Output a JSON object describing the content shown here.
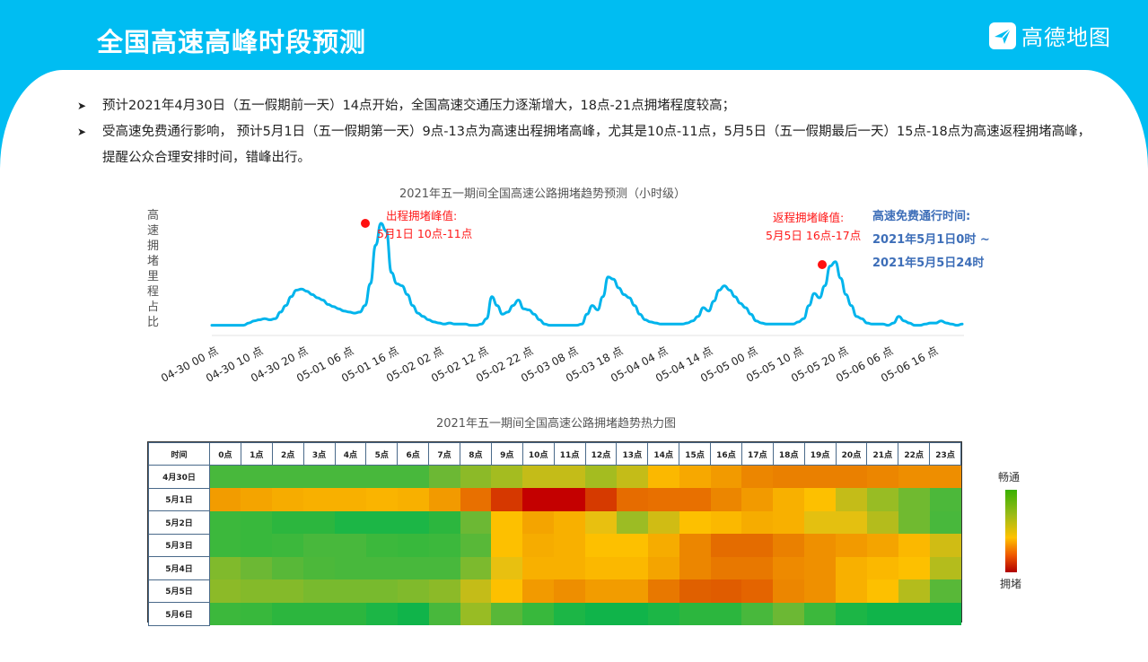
{
  "header": {
    "title": "全国高速高峰时段预测",
    "brand": "高德地图",
    "brand_icon": "amap-logo-icon",
    "bg_color": "#00bdf2"
  },
  "bullets": [
    {
      "icon": "arrow-bullet-icon",
      "text": "预计2021年4月30日（五一假期前一天）14点开始，全国高速交通压力逐渐增大，18点-21点拥堵程度较高；"
    },
    {
      "icon": "arrow-bullet-icon",
      "text": "受高速免费通行影响， 预计5月1日（五一假期第一天）9点-13点为高速出程拥堵高峰，尤其是10点-11点，5月5日（五一假期最后一天）15点-18点为高速返程拥堵高峰，提醒公众合理安排时间，错峰出行。"
    }
  ],
  "line_chart": {
    "title": "2021年五一期间全国高速公路拥堵趋势预测（小时级）",
    "ylabel": "高速拥堵里程占比",
    "line_color": "#00b4ec",
    "peak_out": {
      "label1": "出程拥堵峰值:",
      "label2": "5月1日  10点-11点"
    },
    "peak_return": {
      "label1": "返程拥堵峰值:",
      "label2": "5月5日 16点-17点"
    },
    "free_period": {
      "line1": "高速免费通行时间:",
      "line2": "2021年5月1日0时 ~",
      "line3": "2021年5月5日24时"
    },
    "xticks": [
      "04-30 00 点",
      "04-30 10 点",
      "04-30 20 点",
      "05-01 06 点",
      "05-01 16 点",
      "05-02 02 点",
      "05-02 12 点",
      "05-02 22 点",
      "05-03 08 点",
      "05-03 18 点",
      "05-04 04 点",
      "05-04 14 点",
      "05-05 00 点",
      "05-05 10 点",
      "05-05 20 点",
      "05-06 06 点",
      "05-06 16 点"
    ]
  },
  "heatmap": {
    "title": "2021年五一期间全国高速公路拥堵趋势热力图",
    "corner": "时间",
    "hours": [
      "0点",
      "1点",
      "2点",
      "3点",
      "4点",
      "5点",
      "6点",
      "7点",
      "8点",
      "9点",
      "10点",
      "11点",
      "12点",
      "13点",
      "14点",
      "15点",
      "16点",
      "17点",
      "18点",
      "19点",
      "20点",
      "21点",
      "22点",
      "23点"
    ],
    "rows": [
      {
        "date": "4月30日",
        "colors": [
          "#48b83c",
          "#48b83c",
          "#48b83c",
          "#48b83c",
          "#48b83c",
          "#48b83c",
          "#48b83c",
          "#6cb834",
          "#8cba28",
          "#a4bc20",
          "#c4bc18",
          "#c4bc18",
          "#a4bc20",
          "#c4bc18",
          "#fbb800",
          "#f7a800",
          "#f29a00",
          "#ec8600",
          "#ea8000",
          "#ea8000",
          "#ea8000",
          "#ec8600",
          "#ee8e00",
          "#ee8e00"
        ]
      },
      {
        "date": "5月1日",
        "colors": [
          "#f29c00",
          "#f4a400",
          "#f6ac00",
          "#f8b000",
          "#f8b000",
          "#fab400",
          "#f8b000",
          "#f29a00",
          "#e87000",
          "#d63800",
          "#c40000",
          "#c40000",
          "#d63a00",
          "#e66c00",
          "#e87000",
          "#e87000",
          "#ec8600",
          "#f29a00",
          "#f8b000",
          "#fdc000",
          "#c4bc18",
          "#98bc24",
          "#70ba30",
          "#4cb83a"
        ]
      },
      {
        "date": "5月2日",
        "colors": [
          "#3cb83c",
          "#38b83c",
          "#2cb63e",
          "#2cb63e",
          "#1cb646",
          "#1cb646",
          "#1cb646",
          "#2cb63e",
          "#6cb834",
          "#fdc000",
          "#f4a400",
          "#f8b000",
          "#e8c010",
          "#9cbc24",
          "#d0bc14",
          "#fdc000",
          "#fbb800",
          "#f6ac00",
          "#f8b000",
          "#e4c010",
          "#e4c010",
          "#b4bc1c",
          "#70ba30",
          "#48b83c"
        ]
      },
      {
        "date": "5月3日",
        "colors": [
          "#3cb83c",
          "#38b83c",
          "#3cb83c",
          "#48b83c",
          "#48b83c",
          "#3cb83c",
          "#38b83c",
          "#3cb83c",
          "#58b838",
          "#fdc000",
          "#f6ac00",
          "#f8b000",
          "#fdc000",
          "#fdc000",
          "#f6ac00",
          "#ec8600",
          "#e46c00",
          "#e46c00",
          "#ea8000",
          "#ef9000",
          "#f29a00",
          "#f4a400",
          "#fbb800",
          "#d0bc14"
        ]
      },
      {
        "date": "5月4日",
        "colors": [
          "#80ba2c",
          "#6cb834",
          "#58b838",
          "#4cb83a",
          "#48b83c",
          "#48b83c",
          "#48b83c",
          "#48b83c",
          "#7cba2e",
          "#e8c010",
          "#f8b000",
          "#f8b000",
          "#fbb800",
          "#fbb800",
          "#f4a400",
          "#ec8600",
          "#e87800",
          "#e87800",
          "#ee8a00",
          "#ef9000",
          "#f8b000",
          "#fbb800",
          "#fdc000",
          "#b4bc1c"
        ]
      },
      {
        "date": "5月5日",
        "colors": [
          "#8cba28",
          "#84ba2a",
          "#84ba2a",
          "#78ba2e",
          "#78ba2e",
          "#78ba2e",
          "#80ba2c",
          "#8cba28",
          "#c4bc18",
          "#fdc000",
          "#f29a00",
          "#ee8e00",
          "#f29c00",
          "#f29c00",
          "#e87800",
          "#e06000",
          "#e05c00",
          "#e46400",
          "#ec8600",
          "#ef9000",
          "#f8b000",
          "#fdc000",
          "#b4bc1c",
          "#58b838"
        ]
      },
      {
        "date": "5月6日",
        "colors": [
          "#3cb83c",
          "#38b83c",
          "#2cb63e",
          "#2cb63e",
          "#2cb63e",
          "#1cb646",
          "#10b44a",
          "#48b83c",
          "#98bc24",
          "#58b838",
          "#38b83c",
          "#1cb646",
          "#10b44a",
          "#10b44a",
          "#1cb646",
          "#2cb63e",
          "#2cb63e",
          "#48b83c",
          "#6cb834",
          "#3cb83c",
          "#1cb646",
          "#10b44a",
          "#10b44a",
          "#10b44a"
        ]
      }
    ],
    "legend": {
      "top": "畅通",
      "bottom": "拥堵"
    }
  },
  "chart_data": [
    {
      "type": "line",
      "title": "2021年五一期间全国高速公路拥堵趋势预测（小时级）",
      "xlabel": "",
      "ylabel": "高速拥堵里程占比",
      "x_start": "04-30 00 点",
      "x_step_hours": 1,
      "tick_labels": [
        "04-30 00 点",
        "04-30 10 点",
        "04-30 20 点",
        "05-01 06 点",
        "05-01 16 点",
        "05-02 02 点",
        "05-02 12 点",
        "05-02 22 点",
        "05-03 08 点",
        "05-03 18 点",
        "05-04 04 点",
        "05-04 14 点",
        "05-05 00 点",
        "05-05 10 点",
        "05-05 20 点",
        "05-06 06 点",
        "05-06 16 点"
      ],
      "note": "relative values 0-100 (y axis has no numeric ticks)",
      "series": [
        {
          "name": "拥堵里程占比",
          "values": [
            2,
            2,
            2,
            2,
            2,
            2,
            2,
            4,
            6,
            7,
            8,
            7,
            8,
            14,
            20,
            28,
            34,
            35,
            33,
            30,
            27,
            25,
            21,
            19,
            17,
            15,
            14,
            13,
            14,
            20,
            40,
            75,
            95,
            88,
            50,
            40,
            38,
            30,
            20,
            13,
            10,
            7,
            5,
            4,
            3,
            4,
            3,
            3,
            3,
            2,
            2,
            3,
            8,
            28,
            20,
            12,
            14,
            20,
            25,
            17,
            16,
            12,
            7,
            3,
            2,
            2,
            2,
            2,
            2,
            2,
            3,
            12,
            20,
            16,
            28,
            46,
            44,
            36,
            30,
            27,
            20,
            12,
            7,
            5,
            4,
            3,
            3,
            3,
            3,
            3,
            4,
            6,
            10,
            18,
            15,
            24,
            34,
            38,
            34,
            28,
            22,
            18,
            12,
            6,
            4,
            3,
            3,
            3,
            3,
            3,
            3,
            5,
            8,
            20,
            31,
            27,
            38,
            56,
            60,
            45,
            30,
            20,
            10,
            8,
            4,
            3,
            3,
            3,
            2,
            4,
            10,
            6,
            4,
            2,
            2,
            3,
            4,
            4,
            6,
            4,
            3,
            2,
            3
          ]
        }
      ],
      "annotations": [
        {
          "text": "出程拥堵峰值: 5月1日 10点-11点",
          "x": "05-01 10 点",
          "color": "#ff1a1a"
        },
        {
          "text": "返程拥堵峰值: 5月5日 16点-17点",
          "x": "05-05 16 点",
          "color": "#ff1a1a"
        },
        {
          "text": "高速免费通行时间: 2021年5月1日0时 ~ 2021年5月5日24时",
          "color": "#3d6eb8"
        }
      ],
      "grid": false,
      "legend": "none"
    },
    {
      "type": "heatmap",
      "title": "2021年五一期间全国高速公路拥堵趋势热力图",
      "x": [
        "0点",
        "1点",
        "2点",
        "3点",
        "4点",
        "5点",
        "6点",
        "7点",
        "8点",
        "9点",
        "10点",
        "11点",
        "12点",
        "13点",
        "14点",
        "15点",
        "16点",
        "17点",
        "18点",
        "19点",
        "20点",
        "21点",
        "22点",
        "23点"
      ],
      "y": [
        "4月30日",
        "5月1日",
        "5月2日",
        "5月3日",
        "5月4日",
        "5月5日",
        "5月6日"
      ],
      "scale": "0=畅通(green) … 10=拥堵(red)",
      "values": [
        [
          1,
          1,
          1,
          1,
          1,
          1,
          1,
          2,
          3,
          3,
          4,
          4,
          3,
          4,
          5,
          6,
          6,
          7,
          7,
          7,
          7,
          7,
          6,
          6
        ],
        [
          6,
          6,
          5,
          5,
          5,
          5,
          5,
          6,
          7,
          9,
          10,
          10,
          9,
          7,
          7,
          7,
          7,
          6,
          5,
          5,
          4,
          3,
          2,
          1
        ],
        [
          1,
          1,
          1,
          1,
          0,
          0,
          0,
          1,
          2,
          5,
          6,
          5,
          4,
          3,
          4,
          5,
          5,
          6,
          5,
          4,
          4,
          3,
          2,
          1
        ],
        [
          1,
          1,
          1,
          1,
          1,
          1,
          1,
          1,
          2,
          5,
          6,
          5,
          5,
          5,
          6,
          7,
          8,
          8,
          7,
          7,
          6,
          6,
          5,
          4
        ],
        [
          2,
          2,
          2,
          1,
          1,
          1,
          1,
          1,
          2,
          4,
          5,
          5,
          5,
          5,
          6,
          7,
          7,
          7,
          7,
          7,
          5,
          5,
          5,
          3
        ],
        [
          3,
          2,
          2,
          2,
          2,
          2,
          2,
          3,
          4,
          5,
          6,
          7,
          6,
          6,
          7,
          8,
          8,
          8,
          7,
          7,
          5,
          5,
          3,
          2
        ],
        [
          1,
          1,
          1,
          1,
          1,
          0,
          0,
          1,
          3,
          2,
          1,
          0,
          0,
          0,
          0,
          1,
          1,
          1,
          2,
          1,
          0,
          0,
          0,
          0
        ]
      ]
    }
  ]
}
